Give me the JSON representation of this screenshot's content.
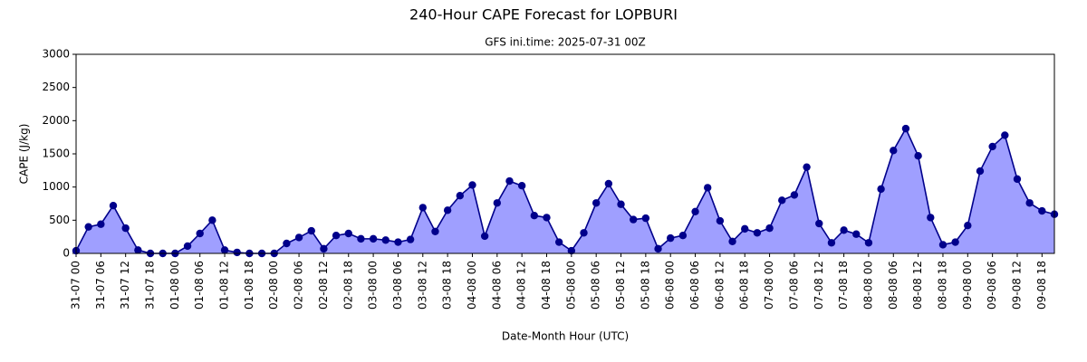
{
  "chart_data": {
    "type": "area",
    "title": "240-Hour CAPE Forecast for LOPBURI",
    "subtitle": "GFS ini.time: 2025-07-31 00Z",
    "x_label": "Date-Month Hour (UTC)",
    "y_label": "CAPE (J/kg)",
    "categories": [
      "31-07 00",
      null,
      "31-07 06",
      null,
      "31-07 12",
      null,
      "31-07 18",
      null,
      "01-08 00",
      null,
      "01-08 06",
      null,
      "01-08 12",
      null,
      "01-08 18",
      null,
      "02-08 00",
      null,
      "02-08 06",
      null,
      "02-08 12",
      null,
      "02-08 18",
      null,
      "03-08 00",
      null,
      "03-08 06",
      null,
      "03-08 12",
      null,
      "03-08 18",
      null,
      "04-08 00",
      null,
      "04-08 06",
      null,
      "04-08 12",
      null,
      "04-08 18",
      null,
      "05-08 00",
      null,
      "05-08 06",
      null,
      "05-08 12",
      null,
      "05-08 18",
      null,
      "06-08 00",
      null,
      "06-08 06",
      null,
      "06-08 12",
      null,
      "06-08 18",
      null,
      "07-08 00",
      null,
      "07-08 06",
      null,
      "07-08 12",
      null,
      "07-08 18",
      null,
      "08-08 00",
      null,
      "08-08 06",
      null,
      "08-08 12",
      null,
      "08-08 18",
      null,
      "09-08 00",
      null,
      "09-08 06",
      null,
      "09-08 12",
      null,
      "09-08 18",
      null
    ],
    "values": [
      40,
      400,
      440,
      720,
      380,
      50,
      0,
      0,
      0,
      110,
      300,
      500,
      50,
      15,
      0,
      0,
      0,
      150,
      240,
      340,
      70,
      270,
      300,
      220,
      220,
      200,
      170,
      210,
      690,
      330,
      650,
      870,
      1030,
      260,
      760,
      1090,
      1020,
      570,
      540,
      170,
      40,
      310,
      760,
      1050,
      740,
      510,
      530,
      70,
      230,
      270,
      630,
      990,
      490,
      180,
      370,
      310,
      380,
      800,
      880,
      1300,
      450,
      160,
      350,
      290,
      160,
      970,
      1550,
      1880,
      1470,
      540,
      130,
      170,
      420,
      1240,
      1610,
      1780,
      1120,
      760,
      640,
      590
    ],
    "line_color": "#00008b",
    "fill_color": "#9f9fff",
    "ylim": [
      0,
      3000
    ],
    "yticks": [
      0,
      500,
      1000,
      1500,
      2000,
      2500,
      3000
    ],
    "grid": false
  }
}
